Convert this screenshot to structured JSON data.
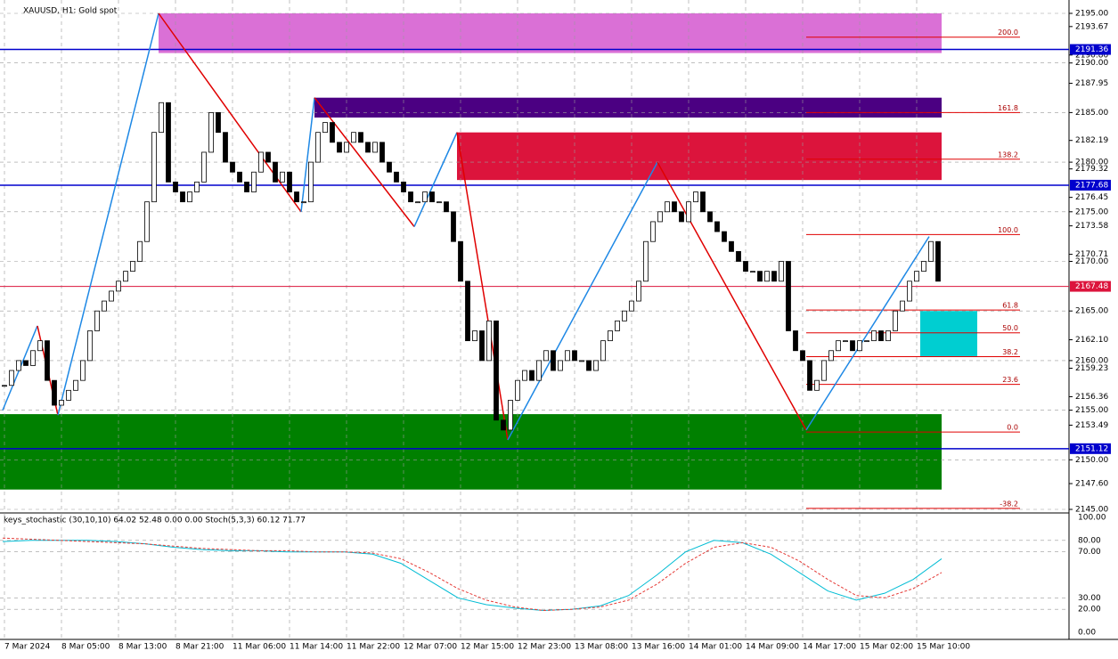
{
  "chart_data": {
    "type": "candlestick",
    "title": "XAUUSD, H1:  Gold spot",
    "closes": [
      2157.5,
      2159,
      2160,
      2159.5,
      2161,
      2162,
      2158,
      2155.5,
      2156,
      2157,
      2158,
      2160,
      2163,
      2165,
      2166,
      2167,
      2168,
      2169,
      2170,
      2172,
      2176,
      2183,
      2186,
      2178,
      2177,
      2176,
      2177,
      2178,
      2181,
      2185,
      2183,
      2180,
      2179,
      2178,
      2177,
      2179,
      2181,
      2180,
      2178,
      2179,
      2177,
      2176,
      2176,
      2180,
      2183,
      2184,
      2182,
      2181,
      2182,
      2183,
      2182,
      2181,
      2182,
      2180,
      2179,
      2178,
      2177,
      2176,
      2176,
      2177,
      2176,
      2176,
      2175,
      2172,
      2168,
      2162,
      2163,
      2160,
      2164,
      2154,
      2153,
      2156,
      2158,
      2159,
      2158,
      2160,
      2161,
      2159,
      2160,
      2161,
      2160,
      2160,
      2159,
      2160,
      2162,
      2163,
      2164,
      2165,
      2166,
      2168,
      2172,
      2174,
      2175,
      2176,
      2175,
      2174,
      2176,
      2177,
      2175,
      2174,
      2173,
      2172,
      2171,
      2170,
      2169,
      2169,
      2168,
      2169,
      2168,
      2170,
      2163,
      2161,
      2160,
      2157,
      2158,
      2160,
      2161,
      2162,
      2162,
      2161,
      2162,
      2162,
      2163,
      2162,
      2163,
      2165,
      2166,
      2168,
      2169,
      2170,
      2172,
      2168
    ],
    "xtick_labels": [
      "7 Mar 2024",
      "8 Mar 05:00",
      "8 Mar 13:00",
      "8 Mar 21:00",
      "11 Mar 06:00",
      "11 Mar 14:00",
      "11 Mar 22:00",
      "12 Mar 07:00",
      "12 Mar 15:00",
      "12 Mar 23:00",
      "13 Mar 08:00",
      "13 Mar 16:00",
      "14 Mar 01:00",
      "14 Mar 09:00",
      "14 Mar 17:00",
      "15 Mar 02:00",
      "15 Mar 10:00"
    ],
    "ylim": [
      2145,
      2195
    ],
    "yticks": [
      {
        "value": 2195,
        "label": "2195.00"
      },
      {
        "value": 2190,
        "label": "2190.00"
      },
      {
        "value": 2185,
        "label": "2185.00"
      },
      {
        "value": 2180,
        "label": "2180.00"
      },
      {
        "value": 2175,
        "label": "2175.00"
      },
      {
        "value": 2170,
        "label": "2170.00"
      },
      {
        "value": 2165,
        "label": "2165.00"
      },
      {
        "value": 2160,
        "label": "2160.00"
      },
      {
        "value": 2155,
        "label": "2155.00"
      },
      {
        "value": 2150,
        "label": "2150.00"
      },
      {
        "value": 2145,
        "label": "2145.00"
      }
    ],
    "yticks_minor": [
      {
        "value": 2193.67,
        "label": "2193.67"
      },
      {
        "value": 2190.8,
        "label": "2190.80"
      },
      {
        "value": 2187.95,
        "label": "2187.95"
      },
      {
        "value": 2182.19,
        "label": "2182.19"
      },
      {
        "value": 2179.32,
        "label": "2179.32"
      },
      {
        "value": 2176.45,
        "label": "2176.45"
      },
      {
        "value": 2173.58,
        "label": "2173.58"
      },
      {
        "value": 2170.71,
        "label": "2170.71"
      },
      {
        "value": 2162.1,
        "label": "2162.10"
      },
      {
        "value": 2159.23,
        "label": "2159.23"
      },
      {
        "value": 2156.36,
        "label": "2156.36"
      },
      {
        "value": 2153.49,
        "label": "2153.49"
      },
      {
        "value": 2147.6,
        "label": "2147.60"
      }
    ],
    "lines": [
      {
        "value": 2191.36,
        "label": "2191.36",
        "color": "#0000cd"
      },
      {
        "value": 2177.68,
        "label": "2177.68",
        "color": "#0000cd"
      },
      {
        "value": 2151.12,
        "label": "2151.12",
        "color": "#0000cd"
      },
      {
        "value": 2167.48,
        "label": "2167.48",
        "color": "#dc143c"
      }
    ],
    "zones": [
      {
        "high": 2195,
        "low": 2191,
        "color": "#da70d6"
      },
      {
        "high": 2186.5,
        "low": 2184.5,
        "color": "#4b0082"
      },
      {
        "high": 2183,
        "low": 2178.2,
        "color": "#dc143c"
      },
      {
        "high": 2154.6,
        "low": 2147,
        "color": "#008000"
      },
      {
        "high": 2165,
        "low": 2160.4,
        "color": "#00ced1"
      }
    ],
    "fib": [
      {
        "label": "200.0",
        "value": 2192.6
      },
      {
        "label": "161.8",
        "value": 2185
      },
      {
        "label": "138.2",
        "value": 2180.3
      },
      {
        "label": "100.0",
        "value": 2172.7
      },
      {
        "label": "61.8",
        "value": 2165.1
      },
      {
        "label": "50.0",
        "value": 2162.8
      },
      {
        "label": "38.2",
        "value": 2160.4
      },
      {
        "label": "23.6",
        "value": 2157.6
      },
      {
        "label": "0.0",
        "value": 2152.8
      },
      {
        "label": "-38.2",
        "value": 2145.1
      }
    ],
    "zigzag": [
      2155,
      2163.5,
      2154.5,
      2195,
      2175,
      2186.5,
      2173.5,
      2183,
      2152,
      2180,
      2153,
      2172.5
    ],
    "indicator_title": "keys_stochastic (30,10,10) 64.02 52.48 0.00 0.00 Stoch(5,3,3) 60.12 71.77",
    "y2lim": [
      0,
      100
    ],
    "y2ticks": [
      {
        "value": 100,
        "label": "100.00"
      },
      {
        "value": 80,
        "label": "80.00"
      },
      {
        "value": 70,
        "label": "70.00"
      },
      {
        "value": 30,
        "label": "30.00"
      },
      {
        "value": 20,
        "label": "20.00"
      },
      {
        "value": 0,
        "label": "0.00"
      }
    ],
    "series": [
      {
        "name": "main",
        "color": "#00bcd4",
        "values": [
          79,
          80,
          80,
          80,
          79,
          77,
          74,
          72,
          71,
          71,
          70,
          70,
          70,
          68,
          60,
          45,
          30,
          24,
          21,
          19,
          20,
          23,
          32,
          50,
          70,
          80,
          78,
          68,
          52,
          36,
          28,
          34,
          46,
          64
        ]
      },
      {
        "name": "signal",
        "color": "#e53935",
        "values": [
          82,
          81,
          80,
          79,
          78,
          77,
          75,
          73,
          72,
          71,
          71,
          70,
          70,
          69,
          64,
          52,
          38,
          28,
          22,
          19,
          20,
          22,
          28,
          42,
          60,
          74,
          78,
          74,
          62,
          46,
          32,
          30,
          38,
          52
        ]
      }
    ]
  }
}
